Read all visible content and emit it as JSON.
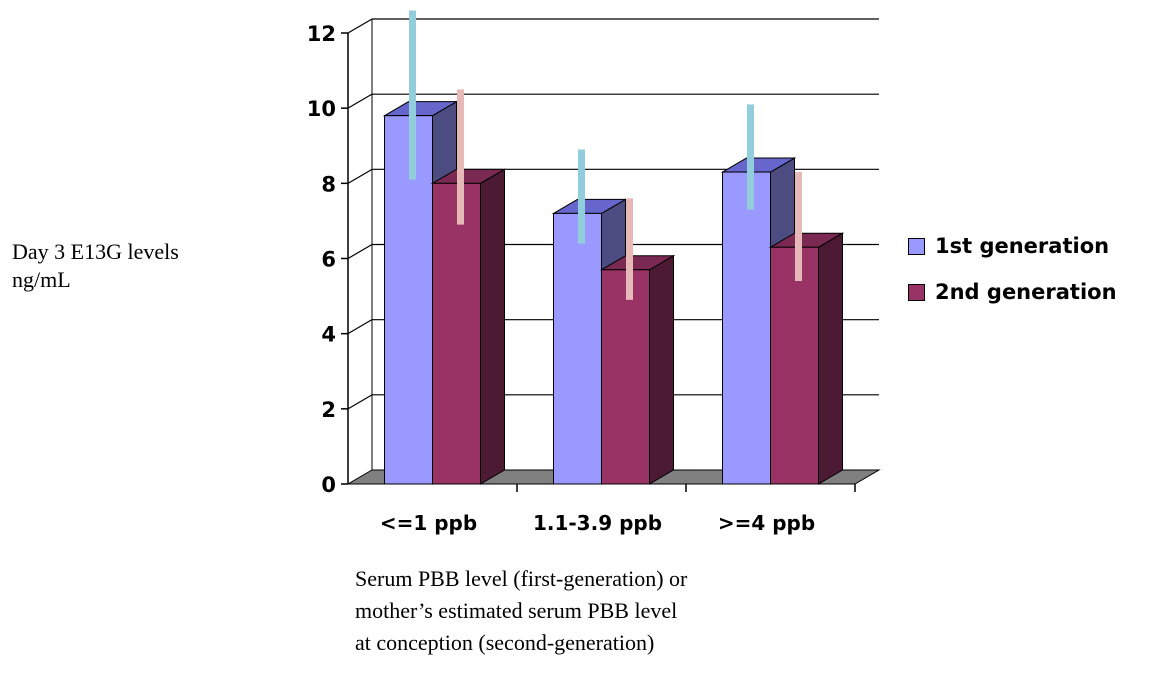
{
  "chart_data": {
    "type": "bar",
    "style": "3d-clustered-column-with-error-bars",
    "ylabel": "Day 3 E13G levels\nng/mL",
    "xlabel": "Serum PBB level (first-generation) or\nmother’s estimated serum PBB level\nat conception (second-generation)",
    "categories": [
      "<=1 ppb",
      "1.1-3.9 ppb",
      ">=4 ppb"
    ],
    "ylim": [
      0,
      12
    ],
    "yticks": [
      0,
      2,
      4,
      6,
      8,
      10,
      12
    ],
    "grid": true,
    "legend_position": "right",
    "series": [
      {
        "name": "1st generation",
        "values": [
          9.8,
          7.2,
          8.3
        ],
        "error_low": [
          8.1,
          6.4,
          7.3
        ],
        "error_high": [
          12.6,
          8.9,
          10.1
        ],
        "color": "#9999ff",
        "side_color": "#4c4c80",
        "top_color": "#6666cc",
        "error_color": "#92cddc"
      },
      {
        "name": "2nd generation",
        "values": [
          8.0,
          5.7,
          6.3
        ],
        "error_low": [
          6.9,
          4.9,
          5.4
        ],
        "error_high": [
          10.5,
          7.6,
          8.3
        ],
        "color": "#993366",
        "side_color": "#4d1a33",
        "top_color": "#7a2952",
        "error_color": "#e6b8b7"
      }
    ]
  }
}
